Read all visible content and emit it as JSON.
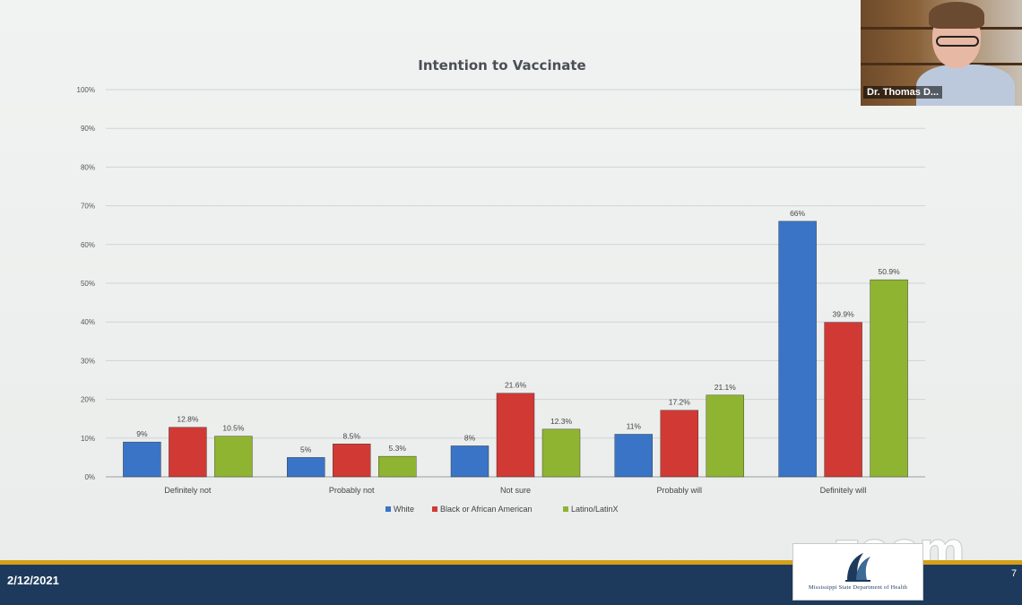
{
  "chart_data": {
    "type": "bar",
    "title": "Intention to Vaccinate",
    "categories": [
      "Definitely not",
      "Probably not",
      "Not sure",
      "Probably will",
      "Definitely will"
    ],
    "series": [
      {
        "name": "White",
        "color": "#3a74c6",
        "values": [
          9,
          5,
          8,
          11,
          66
        ],
        "labels": [
          "9%",
          "5%",
          "8%",
          "11%",
          "66%"
        ]
      },
      {
        "name": "Black or African American",
        "color": "#d13a34",
        "values": [
          12.8,
          8.5,
          21.6,
          17.2,
          39.9
        ],
        "labels": [
          "12.8%",
          "8.5%",
          "21.6%",
          "17.2%",
          "39.9%"
        ]
      },
      {
        "name": "Latino/LatinX",
        "color": "#8fb431",
        "values": [
          10.5,
          5.3,
          12.3,
          21.1,
          50.9
        ],
        "labels": [
          "10.5%",
          "5.3%",
          "12.3%",
          "21.1%",
          "50.9%"
        ]
      }
    ],
    "ylim": [
      0,
      100
    ],
    "yticks": [
      "0%",
      "10%",
      "20%",
      "30%",
      "40%",
      "50%",
      "60%",
      "70%",
      "80%",
      "90%",
      "100%"
    ],
    "grid": true,
    "legend": "bottom"
  },
  "footer": {
    "date": "2/12/2021",
    "page_number": "7",
    "logo_text": "Mississippi State Department of Health"
  },
  "watermark": "zoom",
  "video": {
    "participant_name": "Dr. Thomas D..."
  },
  "colors": {
    "footer_band": "#1d3a5c",
    "accent_line": "#d4a017"
  }
}
